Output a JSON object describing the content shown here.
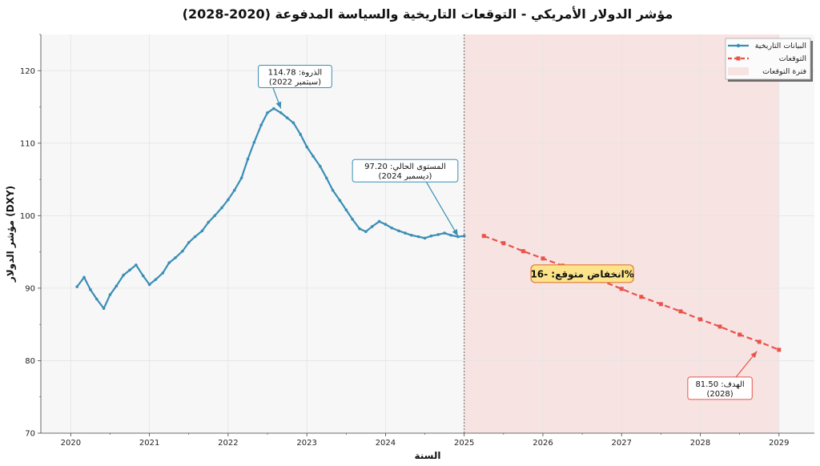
{
  "chart_data": {
    "type": "line",
    "title": "مؤشر الدولار الأمريكي - التوقعات التاريخية والسياسة المدفوعة (2020-2028)",
    "xlabel": "السنة",
    "ylabel": "مؤشر الدولار (DXY)",
    "xlim": [
      2019.62,
      2029.45
    ],
    "ylim": [
      70,
      125
    ],
    "x_ticks": [
      2020,
      2021,
      2022,
      2023,
      2024,
      2025,
      2026,
      2027,
      2028,
      2029
    ],
    "y_ticks": [
      70,
      80,
      90,
      100,
      110,
      120
    ],
    "grid": true,
    "legend_position": "top-right",
    "forecast_start": 2025.0,
    "forecast_end": 2029.0,
    "series": [
      {
        "name": "البيانات التاريخية",
        "color": "#3a8eb5",
        "marker": "circle",
        "style": "solid",
        "x": [
          2020.08,
          2020.17,
          2020.25,
          2020.33,
          2020.42,
          2020.5,
          2020.58,
          2020.67,
          2020.75,
          2020.83,
          2020.92,
          2021.0,
          2021.08,
          2021.17,
          2021.25,
          2021.33,
          2021.42,
          2021.5,
          2021.58,
          2021.67,
          2021.75,
          2021.83,
          2021.92,
          2022.0,
          2022.08,
          2022.17,
          2022.25,
          2022.33,
          2022.42,
          2022.5,
          2022.58,
          2022.67,
          2022.75,
          2022.83,
          2022.92,
          2023.0,
          2023.08,
          2023.17,
          2023.25,
          2023.33,
          2023.42,
          2023.5,
          2023.58,
          2023.67,
          2023.75,
          2023.83,
          2023.92,
          2024.0,
          2024.08,
          2024.17,
          2024.25,
          2024.33,
          2024.42,
          2024.5,
          2024.58,
          2024.67,
          2024.75,
          2024.83,
          2024.92,
          2025.0
        ],
        "values": [
          90.2,
          91.5,
          89.8,
          88.5,
          87.2,
          89.1,
          90.3,
          91.8,
          92.5,
          93.2,
          91.7,
          90.5,
          91.2,
          92.1,
          93.5,
          94.2,
          95.1,
          96.3,
          97.1,
          97.9,
          99.1,
          100.0,
          101.1,
          102.2,
          103.5,
          105.2,
          107.8,
          110.1,
          112.5,
          114.2,
          114.78,
          114.2,
          113.5,
          112.8,
          111.2,
          109.5,
          108.2,
          106.8,
          105.2,
          103.5,
          102.1,
          100.8,
          99.5,
          98.2,
          97.8,
          98.5,
          99.2,
          98.8,
          98.3,
          97.9,
          97.6,
          97.3,
          97.1,
          96.9,
          97.2,
          97.4,
          97.6,
          97.3,
          97.1,
          97.2
        ]
      },
      {
        "name": "التوقعات",
        "color": "#e8534a",
        "marker": "square",
        "style": "dashed",
        "x": [
          2025.25,
          2025.5,
          2025.75,
          2026.0,
          2026.25,
          2026.5,
          2026.75,
          2027.0,
          2027.25,
          2027.5,
          2027.75,
          2028.0,
          2028.25,
          2028.5,
          2028.75,
          2029.0
        ],
        "values": [
          97.2,
          96.2,
          95.1,
          94.1,
          93.1,
          92.0,
          91.0,
          89.9,
          88.8,
          87.8,
          86.8,
          85.7,
          84.7,
          83.6,
          82.6,
          81.5
        ]
      }
    ],
    "forecast_region_label": "فترة التوقعات",
    "annotations": [
      {
        "id": "peak",
        "line1": "الذروة: 114.78",
        "line2": "(سبتمبر 2022)",
        "x": 2022.67,
        "y": 114.78,
        "text_x": 2022.85,
        "text_y": 119.2,
        "edge_color": "#3a8eb5"
      },
      {
        "id": "current",
        "line1": "المستوى الحالي: 97.20",
        "line2": "(ديسمبر 2024)",
        "x": 2024.92,
        "y": 97.2,
        "text_x": 2024.25,
        "text_y": 106.2,
        "edge_color": "#3a8eb5"
      },
      {
        "id": "target",
        "line1": "الهدف: 81.50",
        "line2": "(2028)",
        "x": 2028.72,
        "y": 81.3,
        "text_x": 2028.25,
        "text_y": 76.2,
        "edge_color": "#e8534a"
      }
    ],
    "highlight_badge": {
      "text": "انخفاض متوقع: -16%",
      "x": 2026.5,
      "y": 92.0,
      "fill": "#fde38a",
      "edge": "#e07a30"
    }
  }
}
